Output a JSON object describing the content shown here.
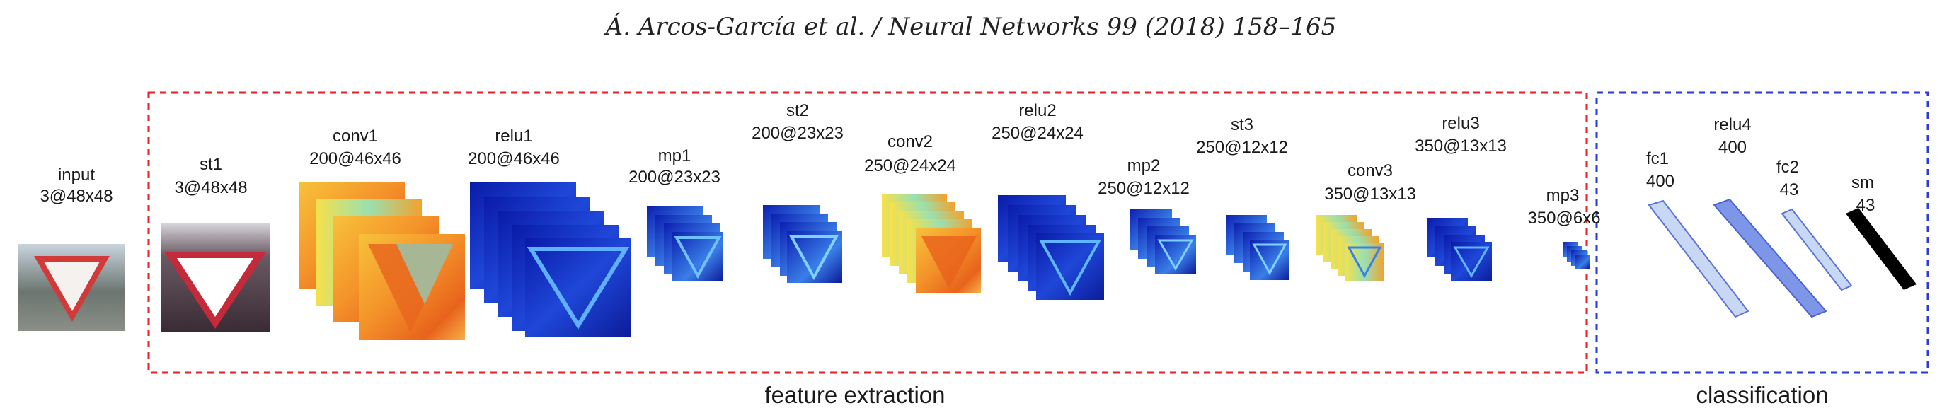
{
  "header": "Á. Arcos-García et al. / Neural Networks 99 (2018) 158–165",
  "sections": {
    "feature_extraction": "feature extraction",
    "classification": "classification"
  },
  "colors": {
    "feature_box": "#e8202a",
    "classification_box": "#2a3bd8",
    "relu_blue": "#1030c8",
    "conv_orange": "#f08a20",
    "fc_light": "#c8d8f4",
    "fc_mid": "#7d96e8",
    "softmax": "#000000"
  },
  "layers": {
    "input": {
      "name": "input",
      "dims": "3@48x48"
    },
    "st1": {
      "name": "st1",
      "dims": "3@48x48"
    },
    "conv1": {
      "name": "conv1",
      "dims": "200@46x46"
    },
    "relu1": {
      "name": "relu1",
      "dims": "200@46x46"
    },
    "mp1": {
      "name": "mp1",
      "dims": "200@23x23"
    },
    "st2": {
      "name": "st2",
      "dims": "200@23x23"
    },
    "conv2": {
      "name": "conv2",
      "dims": "250@24x24"
    },
    "relu2": {
      "name": "relu2",
      "dims": "250@24x24"
    },
    "mp2": {
      "name": "mp2",
      "dims": "250@12x12"
    },
    "st3": {
      "name": "st3",
      "dims": "250@12x12"
    },
    "conv3": {
      "name": "conv3",
      "dims": "350@13x13"
    },
    "relu3": {
      "name": "relu3",
      "dims": "350@13x13"
    },
    "mp3": {
      "name": "mp3",
      "dims": "350@6x6"
    },
    "fc1": {
      "name": "fc1",
      "dims": "400"
    },
    "relu4": {
      "name": "relu4",
      "dims": "400"
    },
    "fc2": {
      "name": "fc2",
      "dims": "43"
    },
    "sm": {
      "name": "sm",
      "dims": "43"
    }
  }
}
